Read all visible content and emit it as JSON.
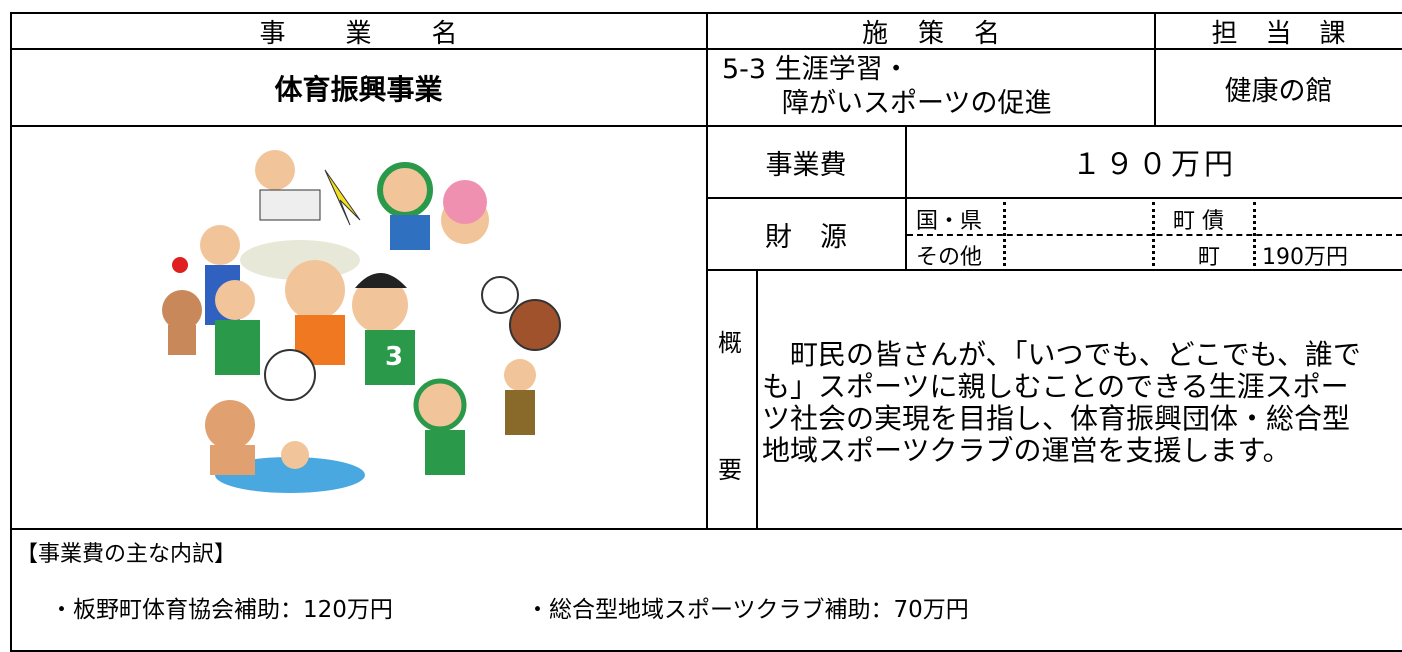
{
  "header": {
    "project_label": "事業名",
    "policy_label": "施策名",
    "department_label": "担当課"
  },
  "project": {
    "name": "体育振興事業",
    "policy": [
      "5-3 生涯学習・",
      "障がいスポーツの促進"
    ],
    "department": "健康の館"
  },
  "cost": {
    "label": "事業費",
    "value": "１９０万円"
  },
  "funding": {
    "label": "財源",
    "national_prefectural": "国・県",
    "town_bond": "町 債",
    "other": "その他",
    "town": "町",
    "town_amount": "190万円"
  },
  "summary": {
    "label_top": "概",
    "label_bottom": "要",
    "lines": [
      "　町民の皆さんが、「いつでも、どこでも、誰で",
      "も」スポーツに親しむことのできる生涯スポー",
      "ツ社会の実現を目指し、体育振興団体・総合型",
      "地域スポーツクラブの運営を支援します。"
    ]
  },
  "breakdown": {
    "title": "【事業費の主な内訳】",
    "items": [
      "・板野町体育協会補助：120万円",
      "・総合型地域スポーツクラブ補助：70万円"
    ]
  }
}
